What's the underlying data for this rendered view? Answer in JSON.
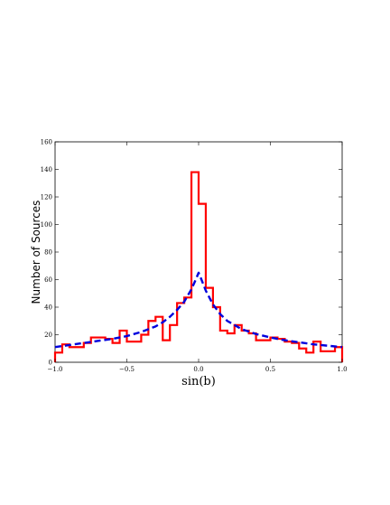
{
  "chart_data": {
    "type": "line",
    "title": "",
    "xlabel": "sin(b)",
    "ylabel": "Number of Sources",
    "xlim": [
      -1.0,
      1.0
    ],
    "ylim": [
      0,
      160
    ],
    "x_ticks": [
      -1.0,
      -0.5,
      0.0,
      0.5,
      1.0
    ],
    "x_tick_labels": [
      "−1.0",
      "−0.5",
      "0.0",
      "0.5",
      "1.0"
    ],
    "y_ticks": [
      0,
      20,
      40,
      60,
      80,
      100,
      120,
      140,
      160
    ],
    "y_tick_labels": [
      "0",
      "20",
      "40",
      "60",
      "80",
      "100",
      "120",
      "140",
      "160"
    ],
    "grid": false,
    "legend": "none",
    "series": [
      {
        "kind": "step-histogram",
        "color": "#ff0000",
        "bin_edges": [
          -1.0,
          -0.95,
          -0.9,
          -0.85,
          -0.8,
          -0.75,
          -0.7,
          -0.65,
          -0.6,
          -0.55,
          -0.5,
          -0.45,
          -0.4,
          -0.35,
          -0.3,
          -0.25,
          -0.2,
          -0.15,
          -0.1,
          -0.05,
          0.0,
          0.05,
          0.1,
          0.15,
          0.2,
          0.25,
          0.3,
          0.35,
          0.4,
          0.45,
          0.5,
          0.55,
          0.6,
          0.65,
          0.7,
          0.75,
          0.8,
          0.85,
          0.9,
          0.95,
          1.0
        ],
        "counts": [
          7,
          13,
          11,
          11,
          14,
          18,
          18,
          17,
          14,
          23,
          15,
          15,
          20,
          30,
          33,
          16,
          27,
          43,
          47,
          138,
          115,
          54,
          40,
          23,
          21,
          27,
          23,
          21,
          16,
          16,
          18,
          17,
          15,
          14,
          10,
          7,
          15,
          8,
          8,
          11
        ]
      },
      {
        "kind": "fit-curve",
        "color": "#0000dd",
        "dash": "dashed",
        "x": [
          -1.0,
          -0.9,
          -0.8,
          -0.7,
          -0.6,
          -0.5,
          -0.4,
          -0.3,
          -0.25,
          -0.2,
          -0.15,
          -0.1,
          -0.05,
          -0.02,
          0.0,
          0.02,
          0.05,
          0.1,
          0.15,
          0.2,
          0.25,
          0.3,
          0.4,
          0.5,
          0.6,
          0.7,
          0.8,
          0.9,
          1.0
        ],
        "y": [
          11,
          12.5,
          14,
          15.5,
          17,
          19,
          22,
          26,
          29,
          33,
          38,
          44,
          53,
          60,
          65,
          60,
          52,
          42,
          35,
          30,
          27,
          24,
          20.5,
          18,
          16,
          14.5,
          13,
          12,
          11
        ]
      }
    ]
  }
}
